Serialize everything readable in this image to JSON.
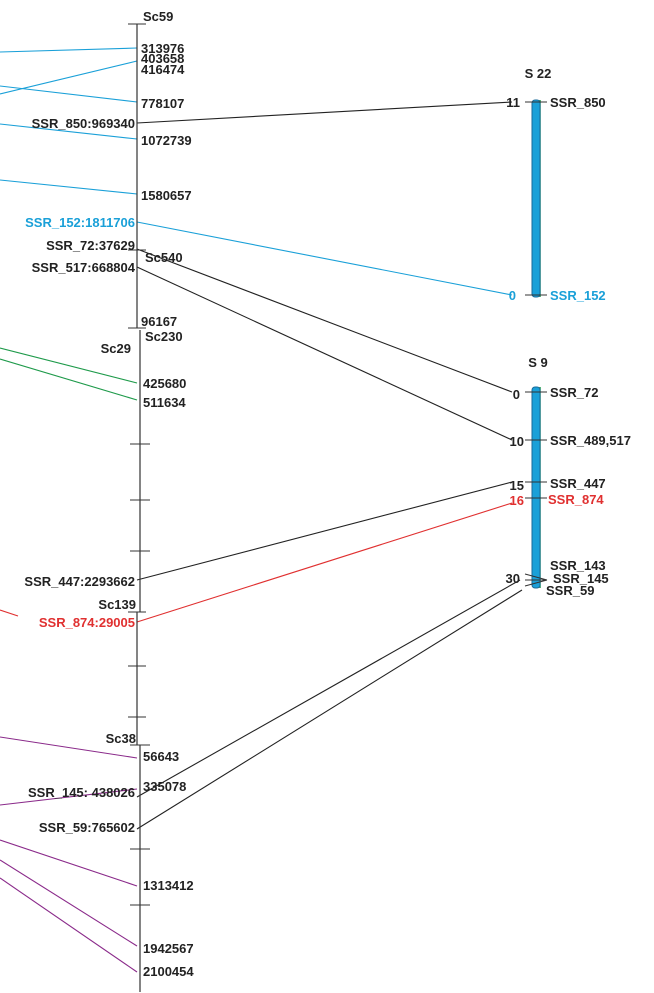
{
  "colors": {
    "cyan": "#1aa0d8",
    "black": "#222222",
    "green": "#1e9a4a",
    "red": "#e03030",
    "purple": "#8a2a8a"
  },
  "scaffold_labels": {
    "sc59": "Sc59",
    "sc540": "Sc540",
    "sc230": "Sc230",
    "sc29": "Sc29",
    "sc139": "Sc139",
    "sc38": "Sc38"
  },
  "positions": {
    "p313976": "313976",
    "p403658": "403658",
    "p416474": "416474",
    "p778107": "778107",
    "p1072739": "1072739",
    "p1580657": "1580657",
    "p96167": "96167",
    "p425680": "425680",
    "p511634": "511634",
    "p56643": "56643",
    "p335078": "335078",
    "p1313412": "1313412",
    "p1942567": "1942567",
    "p2100454": "2100454"
  },
  "markers_left": {
    "ssr850": "SSR_850:969340",
    "ssr152": "SSR_152:1811706",
    "ssr72": "SSR_72:37629",
    "ssr517": "SSR_517:668804",
    "ssr447": "SSR_447:2293662",
    "ssr874": "SSR_874:29005",
    "ssr145": "SSR_145: 438026",
    "ssr59": "SSR_59:765602"
  },
  "s22": {
    "title": "S 22",
    "top_cm": "11",
    "top_marker": "SSR_850",
    "bottom_cm": "0",
    "bottom_marker": "SSR_152"
  },
  "s9": {
    "title": "S 9",
    "m0_cm": "0",
    "m0": "SSR_72",
    "m10_cm": "10",
    "m10": "SSR_489,517",
    "m15_cm": "15",
    "m15": "SSR_447",
    "m16_cm": "16",
    "m16": "SSR_874",
    "m30_cm": "30",
    "m30a": "SSR_143",
    "m30b": "SSR_145",
    "m30c": "SSR_59"
  }
}
